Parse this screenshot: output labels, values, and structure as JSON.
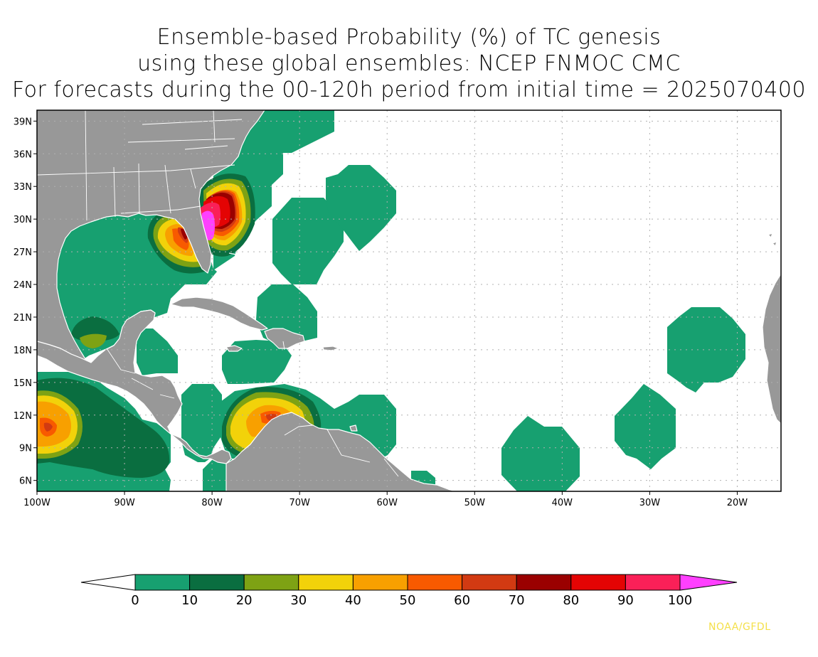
{
  "title": {
    "line1": "Ensemble-based Probability (%) of TC genesis",
    "line2": "using these global ensembles:   NCEP FNMOC CMC",
    "line3": "For forecasts during the 00-120h period from initial time = 2025070400"
  },
  "axes": {
    "lon_labels": [
      "100W",
      "90W",
      "80W",
      "70W",
      "60W",
      "50W",
      "40W",
      "30W",
      "20W"
    ],
    "lat_labels": [
      "39N",
      "36N",
      "33N",
      "30N",
      "27N",
      "24N",
      "21N",
      "18N",
      "15N",
      "12N",
      "9N",
      "6N"
    ],
    "lon_range": [
      -100,
      -15
    ],
    "lat_range": [
      5,
      40
    ],
    "grid": "dotted"
  },
  "colorbar": {
    "ticks": [
      "0",
      "10",
      "20",
      "30",
      "40",
      "50",
      "60",
      "70",
      "80",
      "90",
      "100"
    ],
    "colors": [
      "#ffffff",
      "#17a070",
      "#0a6e40",
      "#7ea214",
      "#f2d20a",
      "#f8a000",
      "#f85a00",
      "#d23a12",
      "#9a0000",
      "#e40404",
      "#fa2058",
      "#ff40ff"
    ]
  },
  "colors": {
    "land": "#989898",
    "coast": "#ffffff",
    "prob_0_10": "#17a070",
    "prob_10_20": "#0a6e40",
    "prob_20_30": "#7ea214",
    "prob_30_40": "#f2d20a",
    "prob_40_50": "#f8a000",
    "prob_50_60": "#f85a00",
    "prob_60_70": "#d23a12",
    "prob_70_80": "#9a0000",
    "prob_80_90": "#e40404",
    "prob_90_100": "#fa2058",
    "prob_100": "#ff40ff",
    "credit": "#f4e04a"
  },
  "credit": "NOAA/GFDL"
}
